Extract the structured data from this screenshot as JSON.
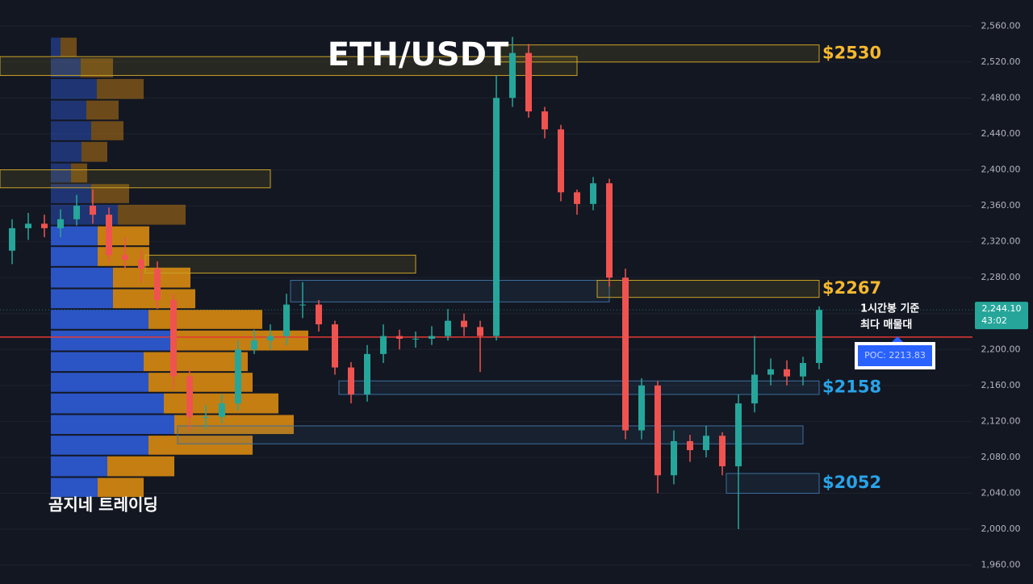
{
  "chart_data": {
    "type": "candlestick",
    "title": "ETH/USDT",
    "watermark": "곰지네 트레이딩",
    "annotation": [
      "1시간봉 기준",
      "최다 매물대"
    ],
    "up_color": "#26a69a",
    "down_color": "#ef5350",
    "open": [
      2310,
      2335,
      2340,
      2335,
      2345,
      2360,
      2350,
      2305,
      2300,
      2290,
      2255,
      2170,
      2125,
      2125,
      2140,
      2200,
      2210,
      2215,
      2250,
      2250,
      2228,
      2180,
      2150,
      2195,
      2215,
      2212,
      2212,
      2215,
      2232,
      2225,
      2215,
      2480,
      2530,
      2465,
      2445,
      2375,
      2362,
      2385,
      2280,
      2110,
      2160,
      2060,
      2098,
      2088,
      2104,
      2070,
      2140,
      2172,
      2178,
      2170,
      2185
    ],
    "high": [
      2345,
      2352,
      2350,
      2356,
      2372,
      2378,
      2358,
      2325,
      2310,
      2298,
      2262,
      2178,
      2138,
      2150,
      2210,
      2222,
      2228,
      2262,
      2275,
      2255,
      2232,
      2186,
      2205,
      2228,
      2222,
      2220,
      2226,
      2245,
      2240,
      2232,
      2505,
      2548,
      2540,
      2470,
      2450,
      2378,
      2392,
      2390,
      2290,
      2168,
      2165,
      2110,
      2105,
      2115,
      2108,
      2150,
      2215,
      2190,
      2188,
      2192,
      2248
    ],
    "low": [
      2295,
      2322,
      2325,
      2325,
      2338,
      2340,
      2298,
      2290,
      2275,
      2245,
      2155,
      2110,
      2112,
      2118,
      2132,
      2195,
      2200,
      2205,
      2235,
      2220,
      2172,
      2140,
      2142,
      2185,
      2200,
      2202,
      2205,
      2210,
      2215,
      2175,
      2210,
      2470,
      2458,
      2435,
      2365,
      2350,
      2355,
      2270,
      2100,
      2100,
      2040,
      2050,
      2075,
      2080,
      2060,
      2000,
      2130,
      2160,
      2160,
      2160,
      2178
    ],
    "close": [
      2335,
      2340,
      2335,
      2345,
      2360,
      2350,
      2305,
      2300,
      2290,
      2255,
      2170,
      2125,
      2125,
      2140,
      2200,
      2210,
      2215,
      2250,
      2250,
      2228,
      2180,
      2150,
      2195,
      2215,
      2212,
      2212,
      2215,
      2232,
      2225,
      2215,
      2480,
      2530,
      2465,
      2445,
      2375,
      2362,
      2385,
      2280,
      2110,
      2160,
      2060,
      2098,
      2088,
      2104,
      2070,
      2140,
      2172,
      2178,
      2170,
      2185,
      2244.1
    ],
    "ylim": [
      1939,
      2589
    ],
    "yticks": [
      {
        "value": 1960,
        "label": "1,960.00"
      },
      {
        "value": 2000,
        "label": "2,000.00"
      },
      {
        "value": 2040,
        "label": "2,040.00"
      },
      {
        "value": 2080,
        "label": "2,080.00"
      },
      {
        "value": 2120,
        "label": "2,120.00"
      },
      {
        "value": 2160,
        "label": "2,160.00"
      },
      {
        "value": 2200,
        "label": "2,200.00"
      },
      {
        "value": 2240,
        "label": "2,240.00"
      },
      {
        "value": 2280,
        "label": "2,280.00"
      },
      {
        "value": 2320,
        "label": "2,320.00"
      },
      {
        "value": 2360,
        "label": "2,360.00"
      },
      {
        "value": 2400,
        "label": "2,400.00"
      },
      {
        "value": 2440,
        "label": "2,440.00"
      },
      {
        "value": 2480,
        "label": "2,480.00"
      },
      {
        "value": 2520,
        "label": "2,520.00"
      },
      {
        "value": 2560,
        "label": "2,560.00"
      }
    ],
    "grid": true,
    "last_price": {
      "value": 2244.1,
      "label": "2,244.10"
    },
    "countdown": "43:02",
    "poc": {
      "value": 2213.83,
      "label": "POC: 2213.83",
      "color": "#e53935"
    },
    "zones": [
      {
        "low": 2520,
        "high": 2539,
        "from": 31,
        "to": 50,
        "color": "#c9a227",
        "label": "$2530",
        "label_color": "#f5b82e"
      },
      {
        "low": 2505,
        "high": 2526,
        "from": 0,
        "to": 35,
        "color": "#c9a227"
      },
      {
        "low": 2380,
        "high": 2400,
        "from": 0,
        "to": 16,
        "color": "#c9a227"
      },
      {
        "low": 2285,
        "high": 2305,
        "from": 9,
        "to": 25,
        "color": "#c9a227"
      },
      {
        "low": 2253,
        "high": 2277,
        "from": 18,
        "to": 37,
        "color": "#3d6f9e"
      },
      {
        "low": 2258,
        "high": 2277,
        "from": 37,
        "to": 50,
        "color": "#c9a227",
        "label": "$2267",
        "label_color": "#f5b82e"
      },
      {
        "low": 2150,
        "high": 2165,
        "from": 21,
        "to": 50,
        "color": "#3d6f9e",
        "label": "$2158",
        "label_color": "#29a3e8"
      },
      {
        "low": 2095,
        "high": 2115,
        "from": 11,
        "to": 49,
        "color": "#3d6f9e"
      },
      {
        "low": 2040,
        "high": 2062,
        "from": 45,
        "to": 50,
        "color": "#3d6f9e",
        "label": "$2052",
        "label_color": "#29a3e8"
      }
    ],
    "profile": {
      "bins": [
        2548,
        2525,
        2502,
        2478,
        2455,
        2432,
        2408,
        2385,
        2362,
        2338,
        2315,
        2292,
        2268,
        2245,
        2222,
        2198,
        2175,
        2152,
        2128,
        2105,
        2082,
        2058,
        2035
      ],
      "buy": [
        12,
        37,
        57,
        44,
        50,
        38,
        25,
        50,
        83,
        58,
        58,
        77,
        77,
        121,
        153,
        115,
        121,
        140,
        153,
        121,
        70,
        58
      ],
      "sell": [
        20,
        40,
        58,
        40,
        40,
        32,
        20,
        47,
        84,
        64,
        64,
        96,
        102,
        141,
        166,
        129,
        129,
        142,
        148,
        129,
        83,
        57
      ],
      "buy_color": "#2f5bd6",
      "sell_color": "#d98a0f"
    }
  }
}
